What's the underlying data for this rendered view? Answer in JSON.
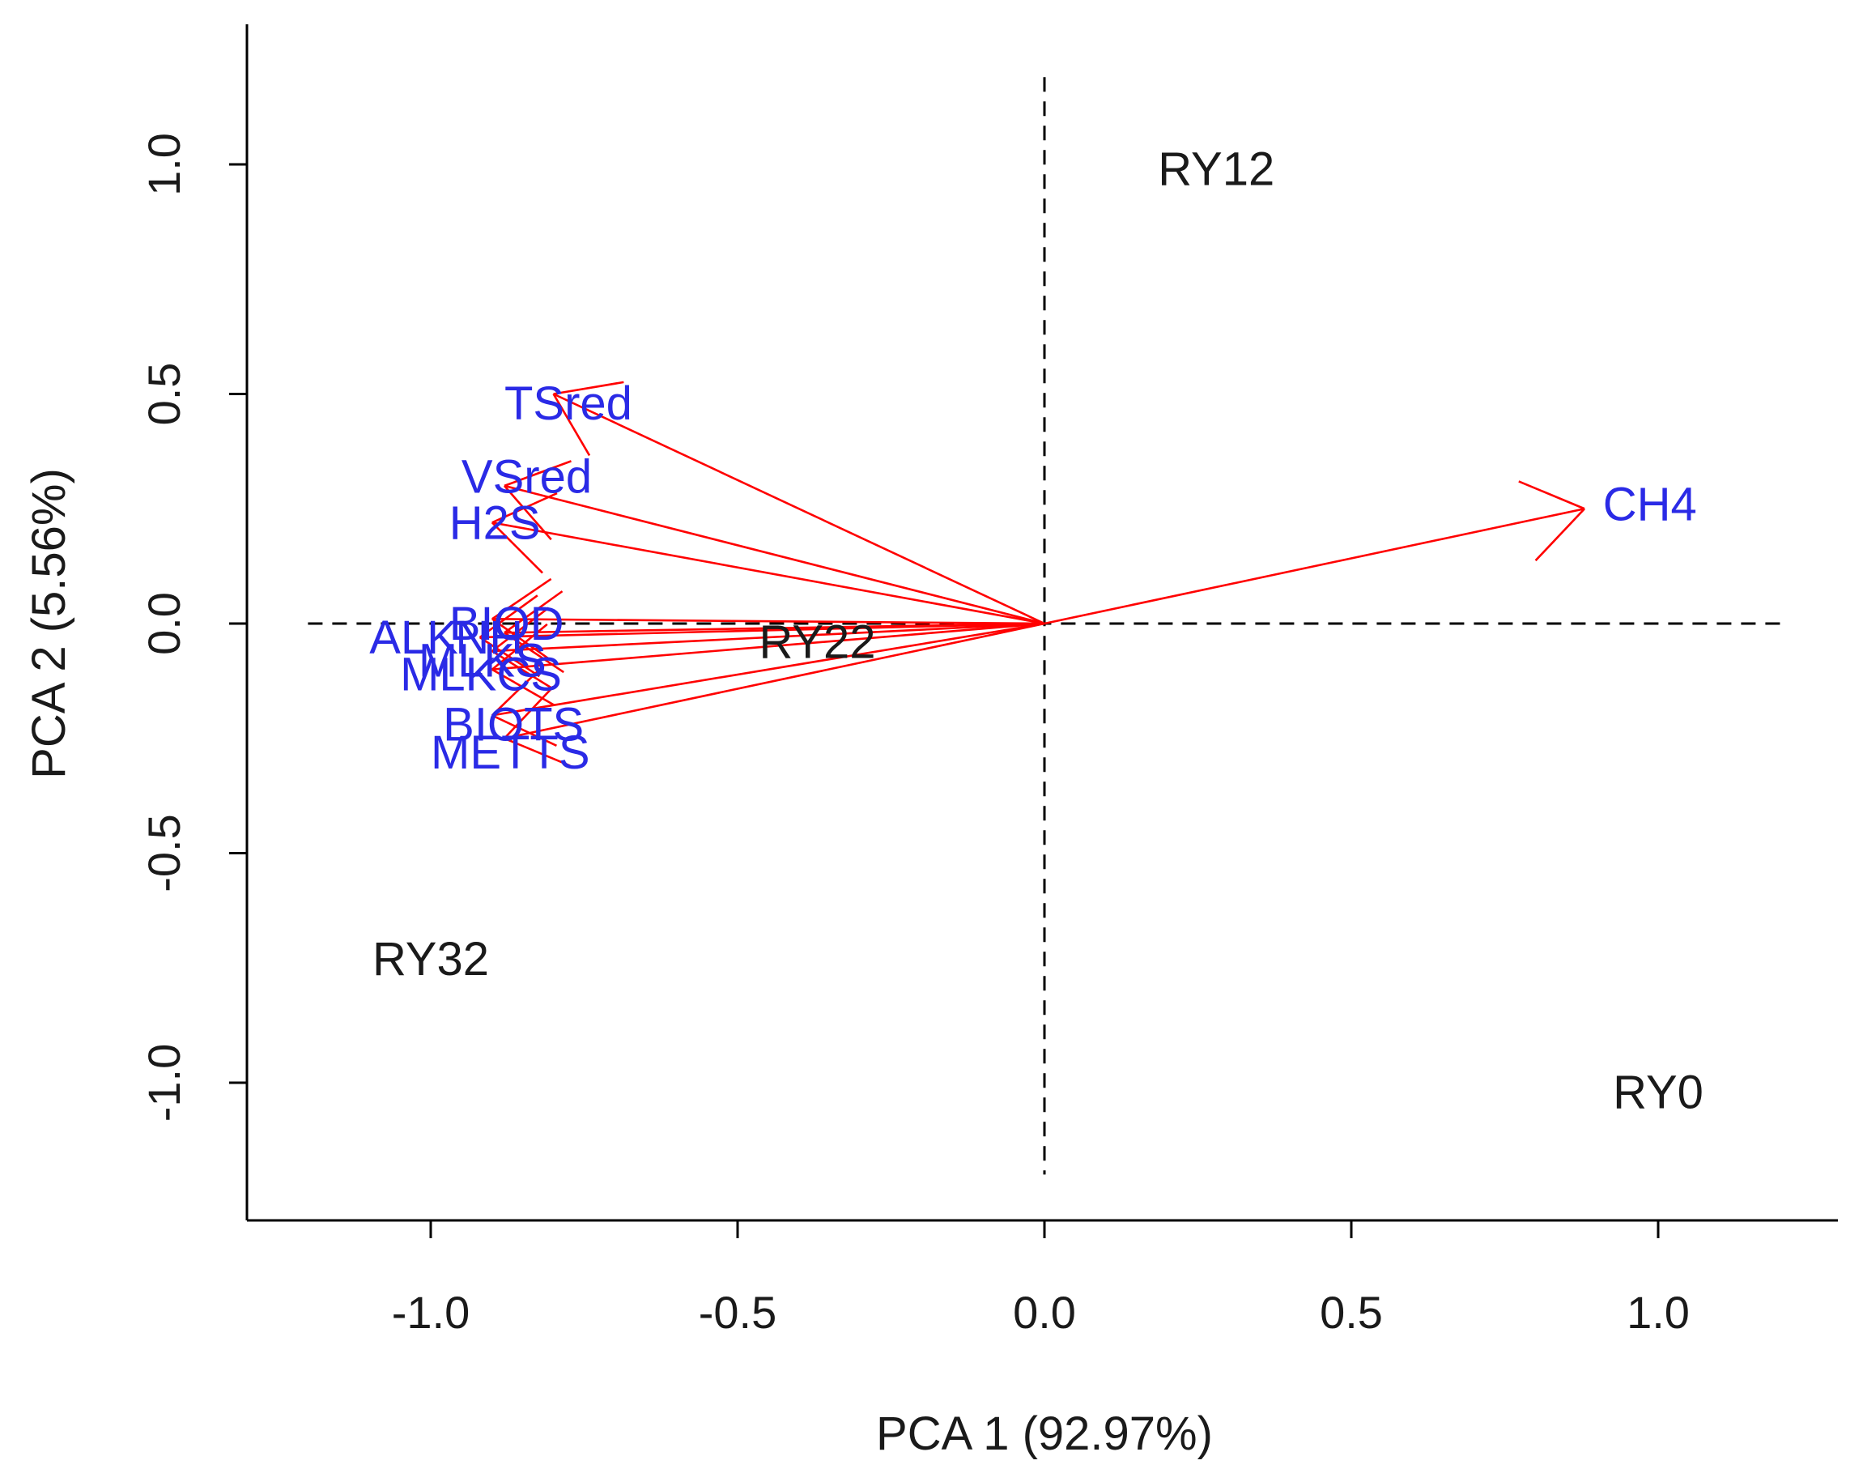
{
  "chart_data": {
    "type": "scatter",
    "subtype": "pca-biplot",
    "xlabel": "PCA 1 (92.97%)",
    "ylabel": "PCA 2 (5.56%)",
    "xlim": [
      -1.3,
      1.3
    ],
    "ylim": [
      -1.3,
      1.3
    ],
    "x_ticks": [
      -1.0,
      -0.5,
      0.0,
      0.5,
      1.0
    ],
    "y_ticks": [
      -1.0,
      -0.5,
      0.0,
      0.5,
      1.0
    ],
    "x_tick_labels": [
      "-1.0",
      "-0.5",
      "0.0",
      "0.5",
      "1.0"
    ],
    "y_tick_labels": [
      "-1.0",
      "-0.5",
      "0.0",
      "0.5",
      "1.0"
    ],
    "reference_lines": {
      "horizontal": 0.0,
      "vertical": 0.0,
      "style": "dashed"
    },
    "observations": [
      {
        "name": "RY12",
        "x": 0.28,
        "y": 0.99
      },
      {
        "name": "RY22",
        "x": -0.37,
        "y": -0.04
      },
      {
        "name": "RY32",
        "x": -1.0,
        "y": -0.73
      },
      {
        "name": "RY0",
        "x": 1.0,
        "y": -1.02
      }
    ],
    "variables": [
      {
        "name": "TSred",
        "x": -0.8,
        "y": 0.5,
        "label_x": -0.88,
        "label_y": 0.48
      },
      {
        "name": "VSred",
        "x": -0.88,
        "y": 0.3,
        "label_x": -0.95,
        "label_y": 0.32
      },
      {
        "name": "H2S",
        "x": -0.9,
        "y": 0.22,
        "label_x": -0.97,
        "label_y": 0.22
      },
      {
        "name": "CH4",
        "x": 0.88,
        "y": 0.25,
        "label_x": 0.91,
        "label_y": 0.26
      },
      {
        "name": "BIOD",
        "x": -0.9,
        "y": 0.01,
        "label_x": -0.97,
        "label_y": 0.0
      },
      {
        "name": "ALK",
        "x": -0.92,
        "y": -0.03,
        "label_x": -1.1,
        "label_y": -0.03
      },
      {
        "name": "NH",
        "x": -0.88,
        "y": -0.02,
        "label_x": -0.96,
        "label_y": -0.03
      },
      {
        "name": "MLKS",
        "x": -0.9,
        "y": -0.06,
        "label_x": -1.02,
        "label_y": -0.08
      },
      {
        "name": "MLKCS",
        "x": -0.9,
        "y": -0.1,
        "label_x": -1.05,
        "label_y": -0.11
      },
      {
        "name": "BIOTS",
        "x": -0.9,
        "y": -0.2,
        "label_x": -0.98,
        "label_y": -0.22
      },
      {
        "name": "METTS",
        "x": -0.88,
        "y": -0.25,
        "label_x": -1.0,
        "label_y": -0.28
      }
    ]
  }
}
